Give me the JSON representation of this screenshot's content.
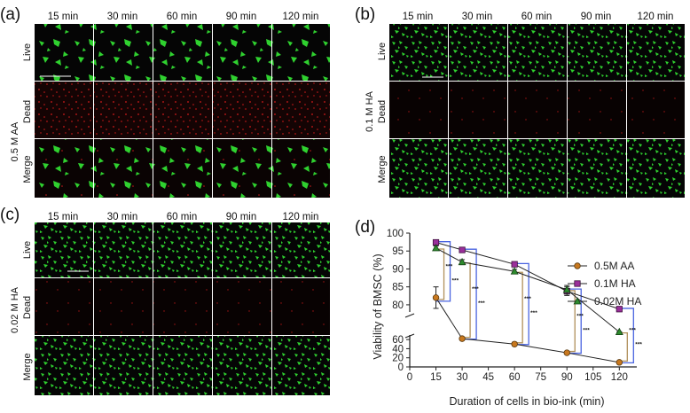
{
  "figure": {
    "panels": [
      {
        "letter": "(a)",
        "side_label": "0.5 M AA",
        "columns": [
          "15 min",
          "30 min",
          "60 min",
          "90 min",
          "120 min"
        ],
        "rows": [
          "Live",
          "Dead",
          "Merge"
        ],
        "pattern": "aa"
      },
      {
        "letter": "(b)",
        "side_label": "0.1 M HA",
        "columns": [
          "15 min",
          "30 min",
          "60 min",
          "90 min",
          "120 min"
        ],
        "rows": [
          "Live",
          "Dead",
          "Merge"
        ],
        "pattern": "ha1"
      },
      {
        "letter": "(c)",
        "side_label": "0.02 M HA",
        "columns": [
          "15 min",
          "30 min",
          "60 min",
          "90 min",
          "120 min"
        ],
        "rows": [
          "Live",
          "Dead",
          "Merge"
        ],
        "pattern": "ha02"
      }
    ],
    "colors": {
      "live": "#2fd12f",
      "dead": "#d21a1a",
      "background": "#050505",
      "aa": "#c8781e",
      "ha1": "#9a2f9a",
      "ha02": "#2e8b2e",
      "blue_bracket": "#4a64e0",
      "tan_bracket": "#b0905a"
    }
  },
  "chart_data": {
    "panel_letter": "(d)",
    "type": "line",
    "xlabel": "Duration of cells in bio-ink  (min)",
    "ylabel": "Viability of BMSC (%)",
    "x_ticks": [
      0,
      15,
      30,
      45,
      60,
      75,
      90,
      105,
      120
    ],
    "y_ticks_upper": [
      80,
      85,
      90,
      95,
      100
    ],
    "y_ticks_lower": [
      0,
      20,
      40,
      60
    ],
    "xlim": [
      0,
      130
    ],
    "ylim_lower": [
      0,
      70
    ],
    "ylim_upper": [
      78,
      100
    ],
    "axis_break": true,
    "legend_position": "right",
    "series": [
      {
        "name": "0.5M AA",
        "marker": "circle",
        "color": "#c8781e",
        "x": [
          15,
          30,
          60,
          90,
          120
        ],
        "y": [
          82,
          62,
          50,
          31,
          10
        ],
        "err": [
          3,
          2,
          4,
          3,
          2
        ]
      },
      {
        "name": "0.1M HA",
        "marker": "square",
        "color": "#9a2f9a",
        "x": [
          15,
          30,
          60,
          90,
          120
        ],
        "y": [
          97.4,
          95.3,
          91.3,
          83.8,
          78.8
        ],
        "err": [
          0.5,
          0.6,
          0.5,
          1.2,
          0.4
        ]
      },
      {
        "name": "0.02M HA",
        "marker": "triangle",
        "color": "#2e8b2e",
        "x": [
          15,
          30,
          60,
          90,
          120
        ],
        "y": [
          95.8,
          91.9,
          89.3,
          84.2,
          76.6
        ],
        "err": [
          0.6,
          0.7,
          0.6,
          1.2,
          0.6
        ]
      }
    ],
    "significance_label": "***",
    "significance_count": 10
  }
}
